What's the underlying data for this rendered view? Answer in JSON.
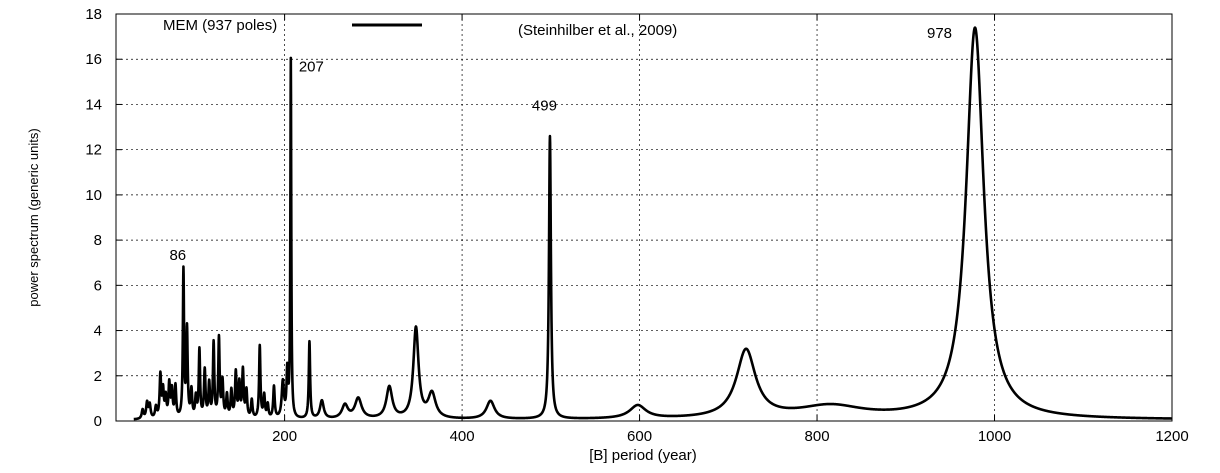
{
  "chart_data": {
    "type": "line",
    "title": "",
    "source_note": "(Steinhilber et al., 2009)",
    "xlabel": "[B]   period (year)",
    "ylabel": "power spectrum (generic units)",
    "xlim": [
      10,
      1200
    ],
    "ylim": [
      0,
      18
    ],
    "x_ticks": [
      200,
      400,
      600,
      800,
      1000,
      1200
    ],
    "y_ticks": [
      0,
      2,
      4,
      6,
      8,
      10,
      12,
      14,
      16,
      18
    ],
    "grid": true,
    "legend_position": "top-left",
    "series": [
      {
        "name": "MEM (937 poles)",
        "color": "#000000",
        "baseline": 0.05,
        "peaks": [
          {
            "x": 40,
            "y": 0.4,
            "w": 1.2
          },
          {
            "x": 45,
            "y": 0.7,
            "w": 1.2
          },
          {
            "x": 48,
            "y": 0.6,
            "w": 1.2
          },
          {
            "x": 55,
            "y": 0.5,
            "w": 1.2
          },
          {
            "x": 60,
            "y": 1.9,
            "w": 1.0
          },
          {
            "x": 63,
            "y": 1.2,
            "w": 1.0
          },
          {
            "x": 66,
            "y": 0.9,
            "w": 1.0
          },
          {
            "x": 70,
            "y": 1.5,
            "w": 1.0
          },
          {
            "x": 73,
            "y": 1.2,
            "w": 1.0
          },
          {
            "x": 77,
            "y": 1.4,
            "w": 1.0
          },
          {
            "x": 86,
            "y": 6.5,
            "w": 0.8
          },
          {
            "x": 90,
            "y": 3.9,
            "w": 0.9
          },
          {
            "x": 95,
            "y": 1.2,
            "w": 1.0
          },
          {
            "x": 100,
            "y": 0.9,
            "w": 1.0
          },
          {
            "x": 104,
            "y": 3.0,
            "w": 0.9
          },
          {
            "x": 110,
            "y": 2.1,
            "w": 1.0
          },
          {
            "x": 115,
            "y": 1.5,
            "w": 1.0
          },
          {
            "x": 120,
            "y": 3.3,
            "w": 0.9
          },
          {
            "x": 126,
            "y": 3.5,
            "w": 0.9
          },
          {
            "x": 130,
            "y": 1.6,
            "w": 1.0
          },
          {
            "x": 135,
            "y": 1.0,
            "w": 1.0
          },
          {
            "x": 140,
            "y": 1.2,
            "w": 1.0
          },
          {
            "x": 145,
            "y": 2.0,
            "w": 1.0
          },
          {
            "x": 149,
            "y": 1.5,
            "w": 1.0
          },
          {
            "x": 153,
            "y": 2.1,
            "w": 1.0
          },
          {
            "x": 157,
            "y": 1.2,
            "w": 1.0
          },
          {
            "x": 163,
            "y": 0.8,
            "w": 1.0
          },
          {
            "x": 172,
            "y": 3.2,
            "w": 0.9
          },
          {
            "x": 177,
            "y": 1.0,
            "w": 1.0
          },
          {
            "x": 181,
            "y": 0.6,
            "w": 1.0
          },
          {
            "x": 188,
            "y": 1.4,
            "w": 1.0
          },
          {
            "x": 198,
            "y": 1.6,
            "w": 1.5
          },
          {
            "x": 203,
            "y": 2.0,
            "w": 1.0
          },
          {
            "x": 207,
            "y": 15.8,
            "w": 0.6
          },
          {
            "x": 228,
            "y": 3.4,
            "w": 0.9
          },
          {
            "x": 242,
            "y": 0.8,
            "w": 2.5
          },
          {
            "x": 268,
            "y": 0.6,
            "w": 4.0
          },
          {
            "x": 283,
            "y": 0.9,
            "w": 4.5
          },
          {
            "x": 318,
            "y": 1.4,
            "w": 4.0
          },
          {
            "x": 348,
            "y": 4.0,
            "w": 3.5
          },
          {
            "x": 366,
            "y": 1.1,
            "w": 5.0
          },
          {
            "x": 432,
            "y": 0.8,
            "w": 5.5
          },
          {
            "x": 499,
            "y": 12.5,
            "w": 1.3
          },
          {
            "x": 598,
            "y": 0.58,
            "w": 11.0
          },
          {
            "x": 720,
            "y": 3.0,
            "w": 13.0
          },
          {
            "x": 815,
            "y": 0.55,
            "w": 45.0
          },
          {
            "x": 978,
            "y": 17.3,
            "w": 12.0
          }
        ]
      }
    ],
    "annotations": [
      {
        "text": "86",
        "x": 86,
        "y": 6.5
      },
      {
        "text": "207",
        "x": 207,
        "y": 15.8
      },
      {
        "text": "499",
        "x": 499,
        "y": 12.5
      },
      {
        "text": "978",
        "x": 978,
        "y": 17.3
      }
    ]
  }
}
